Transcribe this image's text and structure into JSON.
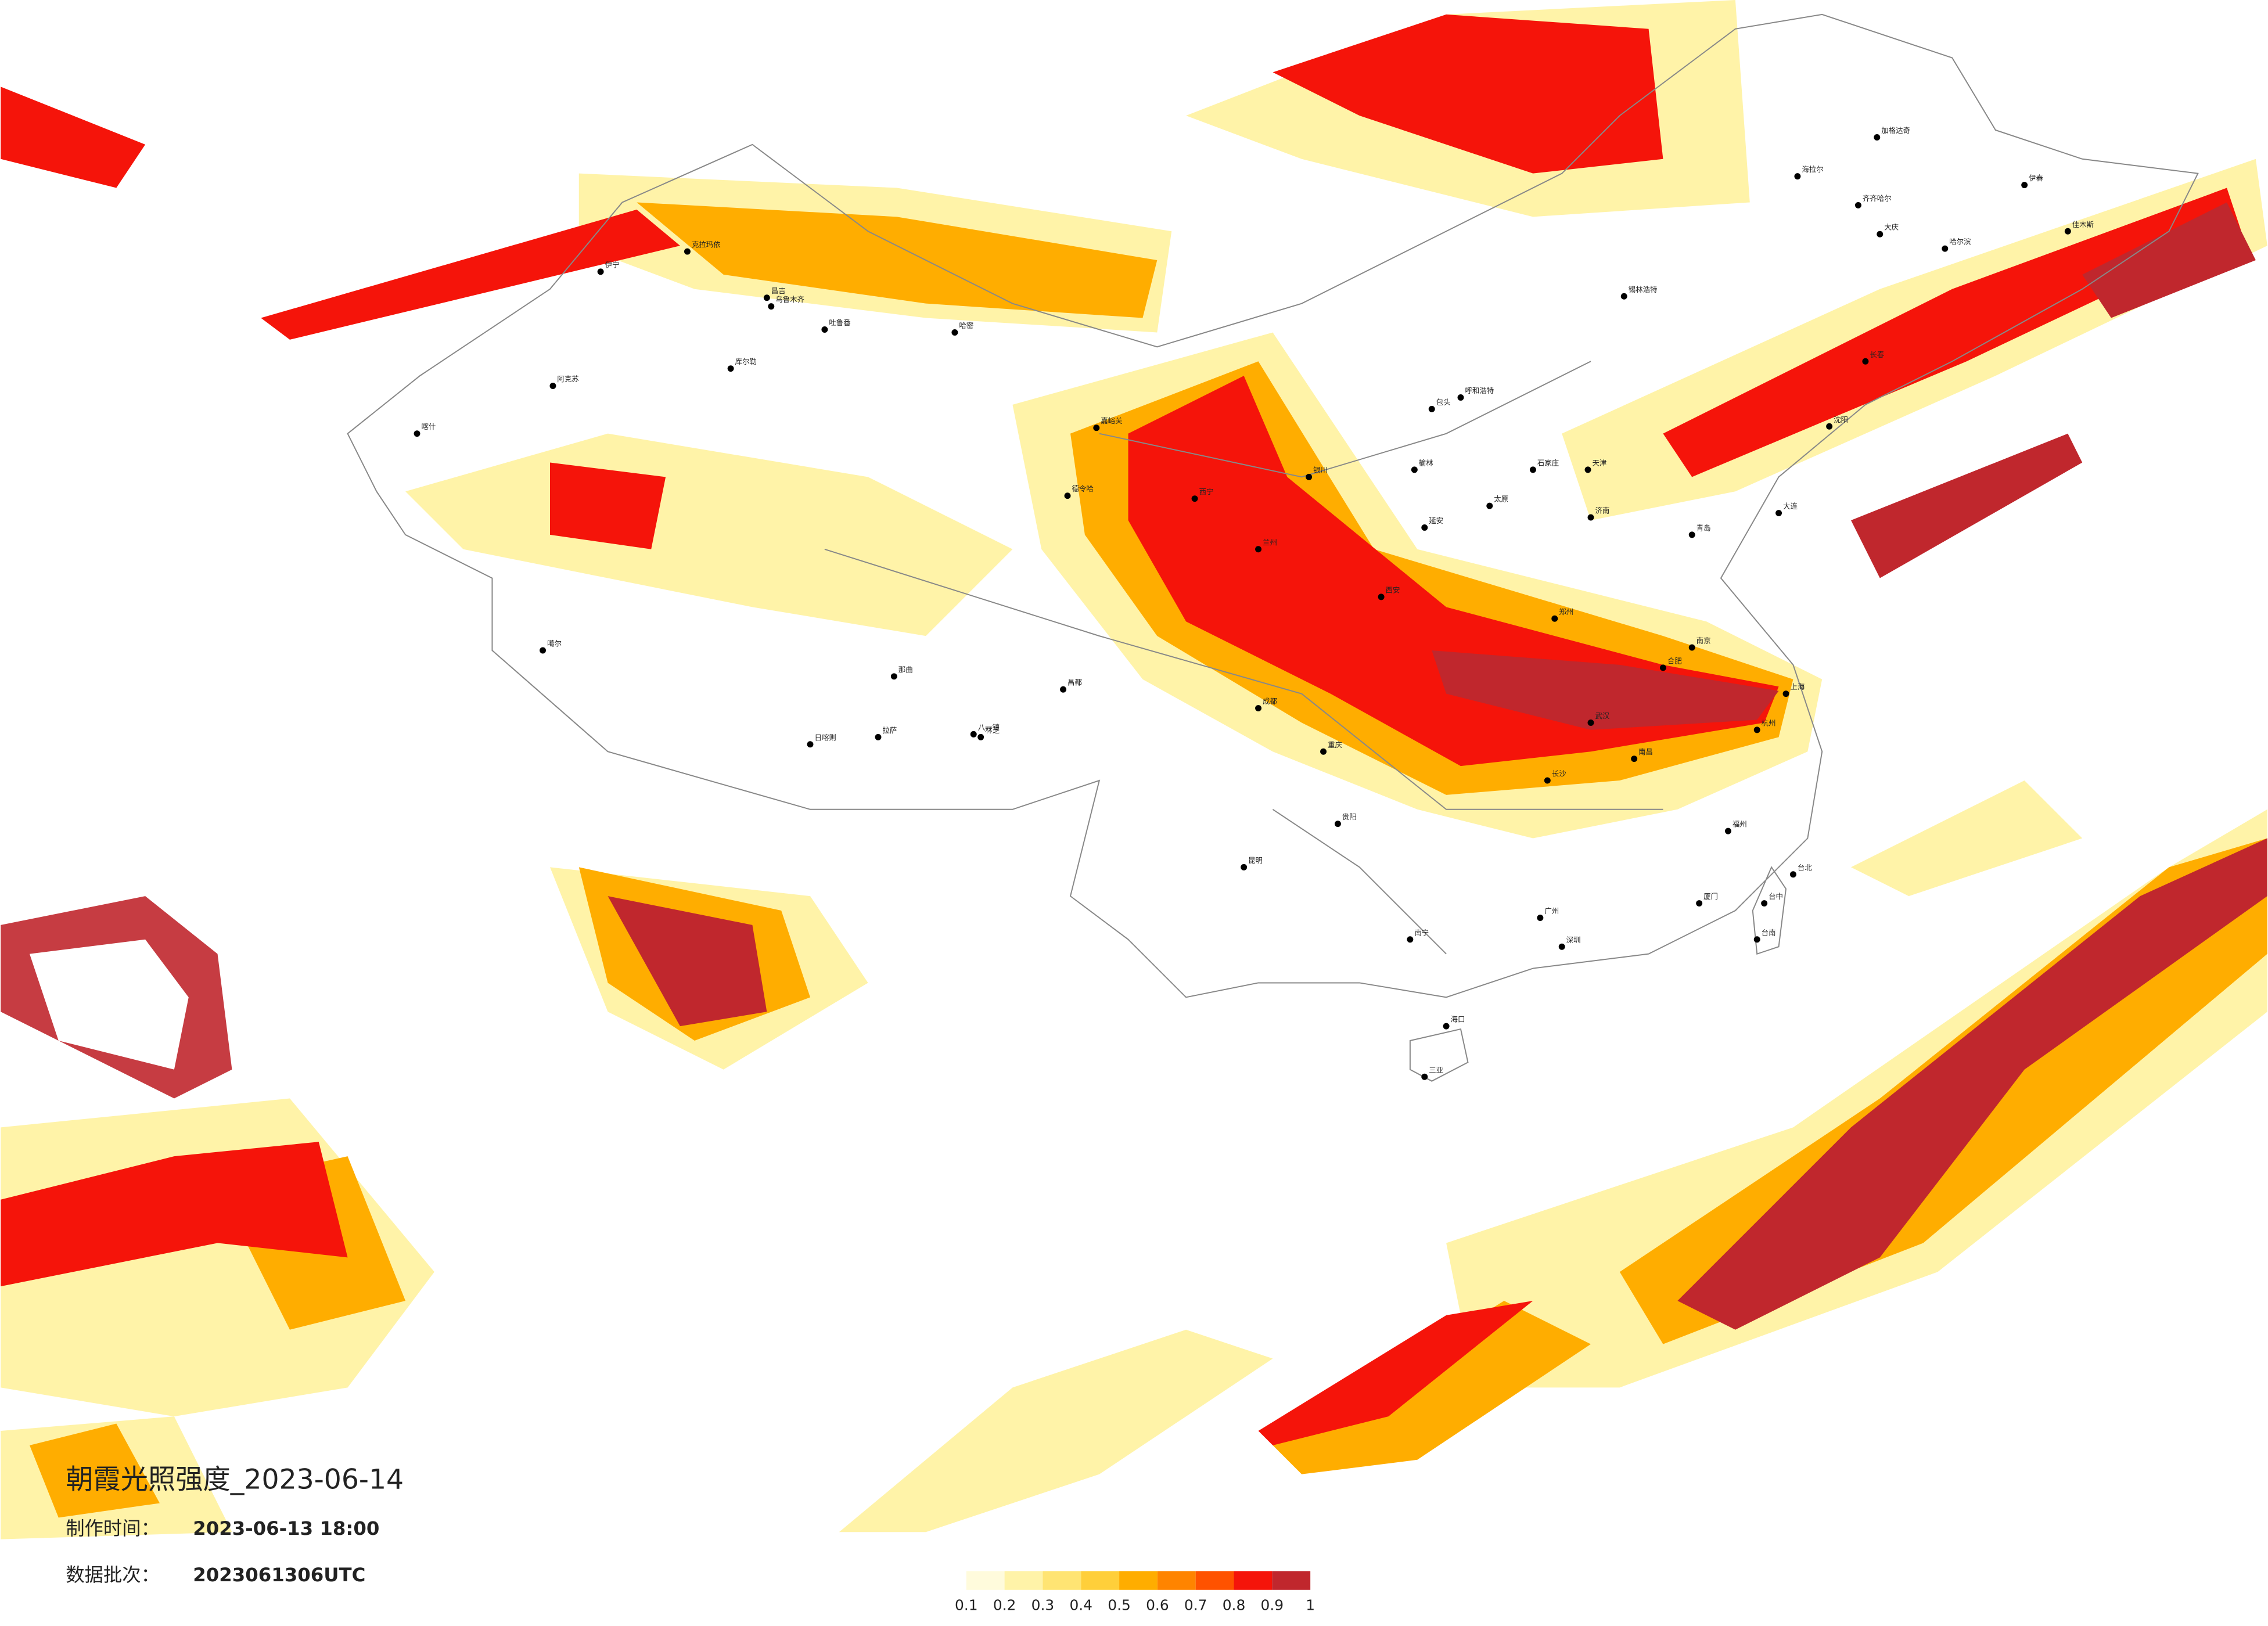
{
  "header": {
    "title": "朝霞光照强度_2023-06-14",
    "time_label": "制作时间：",
    "time": "2023-06-13 18:00",
    "batch_label": "数据批次：",
    "batch": "2023061306UTC"
  },
  "legend": {
    "colors": [
      "#fffbdc",
      "#fff3a8",
      "#ffe473",
      "#ffcf3a",
      "#ffad00",
      "#ff8400",
      "#ff5200",
      "#f5140a",
      "#c0272d"
    ],
    "ticks": [
      0.1,
      0.2,
      0.3,
      0.4,
      0.5,
      0.6,
      0.7,
      0.8,
      0.9,
      1
    ]
  },
  "cities": [
    "伊宁",
    "克拉玛依",
    "昌吉",
    "乌鲁木齐",
    "吐鲁番",
    "哈密",
    "库尔勒",
    "阿克苏",
    "喀什",
    "噶尔",
    "日喀则",
    "拉萨",
    "八一镇",
    "林芝",
    "那曲",
    "昌都",
    "德令哈",
    "嘉峪关",
    "西宁",
    "兰州",
    "银川",
    "海拉尔",
    "加格达奇",
    "齐齐哈尔",
    "大庆",
    "哈尔滨",
    "伊春",
    "佳木斯",
    "锡林浩特",
    "长春",
    "沈阳",
    "大连",
    "呼和浩特",
    "包头",
    "榆林",
    "延安",
    "太原",
    "石家庄",
    "天津",
    "济南",
    "青岛",
    "郑州",
    "西安",
    "南京",
    "合肥",
    "上海",
    "杭州",
    "武汉",
    "长沙",
    "南昌",
    "福州",
    "厦门",
    "成都",
    "重庆",
    "贵阳",
    "昆明",
    "南宁",
    "广州",
    "深圳",
    "海口",
    "三亚",
    "台北",
    "台中",
    "台南"
  ]
}
